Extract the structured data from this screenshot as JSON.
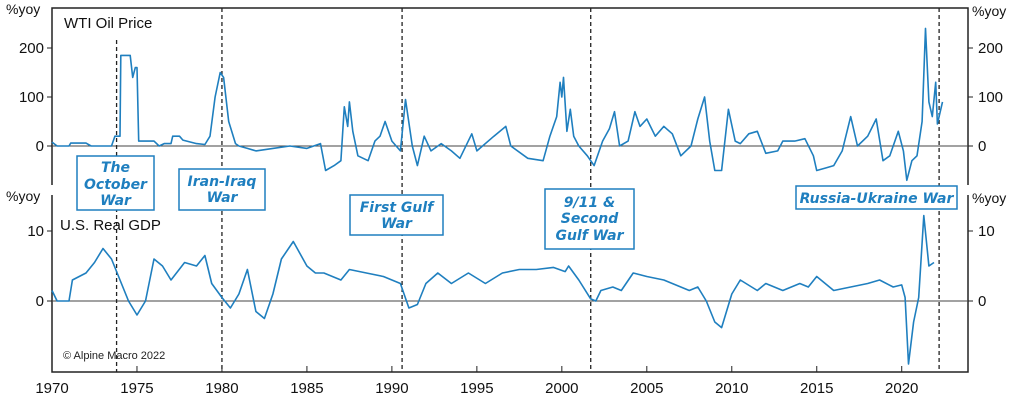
{
  "chart_data": [
    {
      "type": "line",
      "title": "WTI Oil Price",
      "ylabel": "%yoy",
      "ylim": [
        -75,
        282
      ],
      "yticks": [
        0,
        100,
        200
      ],
      "xlim": [
        1970,
        2023.9
      ],
      "color": "#1f7fbf",
      "x": [
        1970,
        1970.3,
        1971,
        1971.1,
        1972,
        1972.3,
        1973.5,
        1973.7,
        1974.0,
        1974.05,
        1974.6,
        1974.75,
        1974.9,
        1975.0,
        1975.1,
        1976,
        1976.3,
        1976.6,
        1977,
        1977.1,
        1977.5,
        1977.7,
        1978.5,
        1979,
        1979.3,
        1979.6,
        1979.9,
        1980.1,
        1980.4,
        1980.8,
        1981,
        1981.5,
        1982,
        1983,
        1984,
        1985,
        1985.8,
        1986.1,
        1986.6,
        1987,
        1987.2,
        1987.4,
        1987.5,
        1987.7,
        1988,
        1988.6,
        1989,
        1989.3,
        1989.6,
        1990,
        1990.5,
        1990.8,
        1991.2,
        1991.5,
        1991.9,
        1992.3,
        1992.9,
        1993.5,
        1994,
        1994.7,
        1995,
        1996,
        1996.7,
        1997,
        1998,
        1998.9,
        1999.3,
        1999.7,
        1999.9,
        2000.0,
        2000.1,
        2000.3,
        2000.5,
        2000.7,
        2001,
        2001.5,
        2001.9,
        2002.4,
        2002.8,
        2003.1,
        2003.4,
        2003.9,
        2004.3,
        2004.6,
        2005,
        2005.5,
        2006,
        2006.5,
        2007,
        2007.6,
        2008,
        2008.4,
        2008.7,
        2009,
        2009.4,
        2009.8,
        2010.2,
        2010.5,
        2011,
        2011.5,
        2012,
        2012.7,
        2013,
        2013.7,
        2014.3,
        2014.8,
        2015,
        2015.5,
        2016,
        2016.5,
        2017,
        2017.4,
        2018,
        2018.5,
        2018.9,
        2019.3,
        2019.8,
        2020.1,
        2020.3,
        2020.6,
        2020.9,
        2021.2,
        2021.4,
        2021.6,
        2021.8,
        2022.0,
        2022.1,
        2022.4
      ],
      "values": [
        8,
        0,
        0,
        6,
        6,
        0,
        0,
        20,
        20,
        185,
        185,
        140,
        160,
        160,
        10,
        10,
        0,
        5,
        5,
        20,
        20,
        12,
        5,
        3,
        20,
        100,
        150,
        140,
        50,
        5,
        0,
        -5,
        -10,
        -5,
        0,
        -5,
        5,
        -50,
        -40,
        -30,
        80,
        40,
        90,
        30,
        -20,
        -30,
        10,
        20,
        50,
        10,
        -10,
        95,
        0,
        -40,
        20,
        -10,
        5,
        -10,
        -25,
        25,
        -10,
        20,
        40,
        0,
        -25,
        -30,
        20,
        60,
        130,
        100,
        140,
        30,
        75,
        20,
        0,
        -20,
        -40,
        10,
        35,
        70,
        0,
        10,
        70,
        40,
        55,
        20,
        40,
        25,
        -20,
        0,
        55,
        100,
        10,
        -50,
        -50,
        75,
        10,
        5,
        25,
        30,
        -15,
        -10,
        10,
        10,
        15,
        -20,
        -50,
        -45,
        -40,
        -10,
        60,
        0,
        20,
        55,
        -30,
        -20,
        30,
        -10,
        -70,
        -30,
        -20,
        50,
        240,
        90,
        60,
        130,
        45,
        90
      ]
    },
    {
      "type": "line",
      "title": "U.S. Real GDP",
      "ylabel": "%yoy",
      "ylim": [
        -10,
        15
      ],
      "yticks": [
        0,
        10
      ],
      "xlim": [
        1970,
        2023.9
      ],
      "xticks": [
        1970,
        1975,
        1980,
        1985,
        1990,
        1995,
        2000,
        2005,
        2010,
        2015,
        2020
      ],
      "color": "#1f7fbf",
      "x": [
        1970,
        1970.3,
        1971,
        1971.2,
        1972,
        1972.5,
        1973,
        1973.5,
        1974,
        1974.5,
        1975,
        1975.5,
        1976,
        1976.5,
        1977,
        1977.8,
        1978.5,
        1979,
        1979.4,
        1980,
        1980.5,
        1981,
        1981.5,
        1982,
        1982.5,
        1983,
        1983.5,
        1984.2,
        1985,
        1985.5,
        1986,
        1987,
        1987.5,
        1988.5,
        1989.5,
        1990.5,
        1991,
        1991.5,
        1992,
        1992.7,
        1993.5,
        1994.5,
        1995.5,
        1996.5,
        1997.5,
        1998.5,
        1999.5,
        2000.2,
        2000.4,
        2001,
        2001.7,
        2002,
        2002.3,
        2003,
        2003.5,
        2004.2,
        2005,
        2006,
        2007,
        2007.5,
        2008,
        2008.5,
        2009,
        2009.4,
        2010,
        2010.5,
        2011.5,
        2012,
        2012.5,
        2013,
        2014,
        2014.5,
        2015,
        2016,
        2017,
        2018,
        2018.7,
        2019.5,
        2020,
        2020.2,
        2020.4,
        2020.7,
        2021,
        2021.3,
        2021.6,
        2021.9
      ],
      "values": [
        1.5,
        0,
        0,
        3,
        4,
        5.5,
        7.5,
        6,
        3,
        0,
        -2,
        0,
        6,
        5,
        3,
        5.5,
        5,
        6.5,
        2.5,
        0.5,
        -1,
        1,
        4.5,
        -1.5,
        -2.5,
        1,
        6,
        8.5,
        5,
        4,
        4,
        3,
        4.5,
        4,
        3.5,
        2.5,
        -1,
        -0.5,
        2.5,
        4,
        2.5,
        4,
        2.5,
        4,
        4.5,
        4.5,
        4.8,
        4.2,
        5,
        3,
        0.3,
        0,
        1.5,
        2,
        1.5,
        4,
        3.5,
        3,
        2,
        1.5,
        2,
        0,
        -3,
        -3.8,
        1,
        3,
        1.5,
        2.5,
        2,
        1.5,
        2.5,
        2,
        3.5,
        1.5,
        2,
        2.5,
        3,
        2,
        2.3,
        0.5,
        -9,
        -3,
        0.5,
        12.2,
        5,
        5.5
      ]
    }
  ],
  "events": [
    {
      "year": 1973.8,
      "label": [
        "The",
        "October",
        "War"
      ]
    },
    {
      "year": 1980.0,
      "label": [
        "Iran-Iraq",
        "War"
      ]
    },
    {
      "year": 1990.6,
      "label": [
        "First Gulf",
        "War"
      ]
    },
    {
      "year": 2001.7,
      "label": [
        "9/11 &",
        "Second",
        "Gulf War"
      ]
    },
    {
      "year": 2022.2,
      "label": [
        "Russia-Ukraine War"
      ]
    }
  ],
  "copyright": "© Alpine Macro 2022",
  "unit_label": "%yoy"
}
